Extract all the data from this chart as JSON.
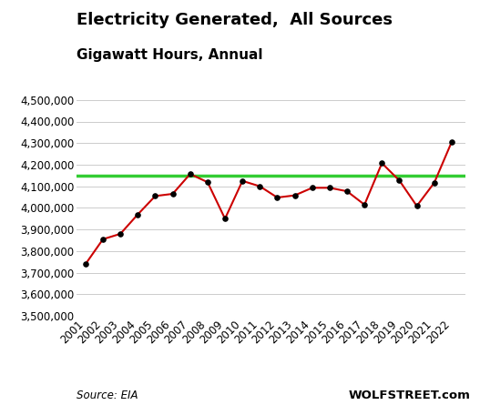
{
  "title_line1": "Electricity Generated,  All Sources",
  "title_line2": "Gigawatt Hours, Annual",
  "years": [
    2001,
    2002,
    2003,
    2004,
    2005,
    2006,
    2007,
    2008,
    2009,
    2010,
    2011,
    2012,
    2013,
    2014,
    2015,
    2016,
    2017,
    2018,
    2019,
    2020,
    2021,
    2022
  ],
  "values": [
    3740000,
    3855000,
    3880000,
    3970000,
    4055000,
    4065000,
    4157000,
    4119000,
    3950000,
    4125000,
    4100000,
    4048000,
    4058000,
    4093000,
    4093000,
    4077000,
    4015000,
    4207000,
    4127000,
    4009000,
    4116000,
    4305000
  ],
  "hline_value": 4150000,
  "line_color": "#cc0000",
  "hline_color": "#33cc33",
  "marker_color": "#000000",
  "ylim": [
    3500000,
    4550000
  ],
  "yticks": [
    3500000,
    3600000,
    3700000,
    3800000,
    3900000,
    4000000,
    4100000,
    4200000,
    4300000,
    4400000,
    4500000
  ],
  "background_color": "#ffffff",
  "grid_color": "#cccccc",
  "source_text": "Source: EIA",
  "watermark_text": "WOLFSTREET.com",
  "title_fontsize": 13,
  "subtitle_fontsize": 11,
  "tick_fontsize": 8.5,
  "source_fontsize": 8.5,
  "watermark_fontsize": 9.5
}
